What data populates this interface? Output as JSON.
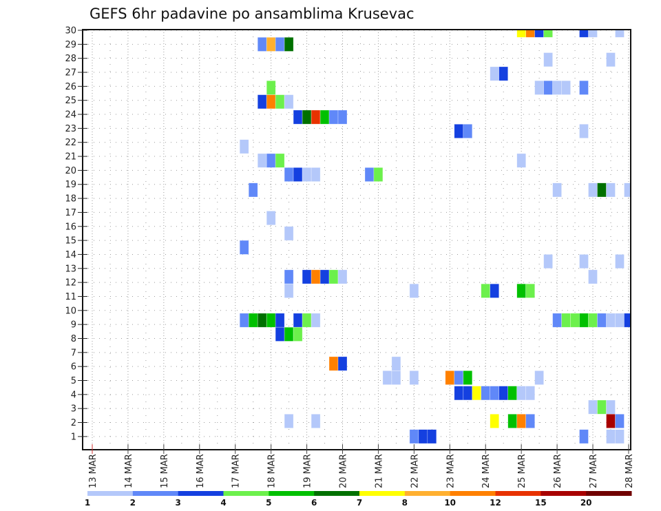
{
  "chart_data": {
    "type": "heatmap",
    "title": "GEFS 6hr padavine po ansamblima Krusevac",
    "xlabel": "",
    "ylabel": "",
    "x_step_hours": 6,
    "x_ticks": [
      "13 MAR",
      "14 MAR",
      "15 MAR",
      "16 MAR",
      "17 MAR",
      "18 MAR",
      "19 MAR",
      "20 MAR",
      "21 MAR",
      "22 MAR",
      "23 MAR",
      "24 MAR",
      "25 MAR",
      "26 MAR",
      "27 MAR",
      "28 MAR"
    ],
    "x_range_steps": [
      0,
      60
    ],
    "y_ticks": [
      "1",
      "2",
      "3",
      "4",
      "5",
      "6",
      "7",
      "8",
      "9",
      "10",
      "11",
      "12",
      "13",
      "14",
      "15",
      "16",
      "17",
      "18",
      "19",
      "20",
      "21",
      "22",
      "23",
      "24",
      "25",
      "26",
      "27",
      "28",
      "29",
      "30"
    ],
    "y_range": [
      0,
      30
    ],
    "grid": true,
    "legend": {
      "placement": "bottom",
      "labels": [
        "1",
        "2",
        "3",
        "4",
        "5",
        "6",
        "7",
        "8",
        "10",
        "12",
        "15",
        "20"
      ],
      "colors": [
        "#b4c8fa",
        "#6088f8",
        "#1440e0",
        "#6cf04c",
        "#00c000",
        "#007000",
        "#ffff00",
        "#ffb030",
        "#ff8000",
        "#e83200",
        "#a80000",
        "#700000"
      ]
    },
    "cells_note": "each cell: step index k (6-hour steps from 13 MAR 00z), ensemble value v, color class c (0 = 1-2 ... 11 = >20)",
    "cells": [
      {
        "k": 48,
        "v": 30,
        "c": 6
      },
      {
        "k": 49,
        "v": 30,
        "c": 8
      },
      {
        "k": 50,
        "v": 30,
        "c": 2
      },
      {
        "k": 51,
        "v": 30,
        "c": 3
      },
      {
        "k": 55,
        "v": 30,
        "c": 2
      },
      {
        "k": 56,
        "v": 30,
        "c": 0
      },
      {
        "k": 59,
        "v": 30,
        "c": 0
      },
      {
        "k": 19,
        "v": 29,
        "c": 1
      },
      {
        "k": 20,
        "v": 29,
        "c": 7
      },
      {
        "k": 21,
        "v": 29,
        "c": 1
      },
      {
        "k": 22,
        "v": 29,
        "c": 5
      },
      {
        "k": 51,
        "v": 27.9,
        "c": 0
      },
      {
        "k": 58,
        "v": 27.9,
        "c": 0
      },
      {
        "k": 45,
        "v": 26.9,
        "c": 0
      },
      {
        "k": 46,
        "v": 26.9,
        "c": 2
      },
      {
        "k": 20,
        "v": 25.9,
        "c": 3
      },
      {
        "k": 50,
        "v": 25.9,
        "c": 0
      },
      {
        "k": 51,
        "v": 25.9,
        "c": 1
      },
      {
        "k": 52,
        "v": 25.9,
        "c": 0
      },
      {
        "k": 53,
        "v": 25.9,
        "c": 0
      },
      {
        "k": 55,
        "v": 25.9,
        "c": 1
      },
      {
        "k": 19,
        "v": 24.9,
        "c": 2
      },
      {
        "k": 20,
        "v": 24.9,
        "c": 8
      },
      {
        "k": 21,
        "v": 24.9,
        "c": 3
      },
      {
        "k": 22,
        "v": 24.9,
        "c": 0
      },
      {
        "k": 23,
        "v": 23.8,
        "c": 2
      },
      {
        "k": 24,
        "v": 23.8,
        "c": 5
      },
      {
        "k": 25,
        "v": 23.8,
        "c": 9
      },
      {
        "k": 26,
        "v": 23.8,
        "c": 4
      },
      {
        "k": 27,
        "v": 23.8,
        "c": 1
      },
      {
        "k": 28,
        "v": 23.8,
        "c": 1
      },
      {
        "k": 41,
        "v": 22.8,
        "c": 2
      },
      {
        "k": 42,
        "v": 22.8,
        "c": 1
      },
      {
        "k": 55,
        "v": 22.8,
        "c": 0
      },
      {
        "k": 17,
        "v": 21.7,
        "c": 0
      },
      {
        "k": 19,
        "v": 20.7,
        "c": 0
      },
      {
        "k": 20,
        "v": 20.7,
        "c": 1
      },
      {
        "k": 21,
        "v": 20.7,
        "c": 3
      },
      {
        "k": 48,
        "v": 20.7,
        "c": 0
      },
      {
        "k": 22,
        "v": 19.7,
        "c": 1
      },
      {
        "k": 23,
        "v": 19.7,
        "c": 2
      },
      {
        "k": 24,
        "v": 19.7,
        "c": 0
      },
      {
        "k": 25,
        "v": 19.7,
        "c": 0
      },
      {
        "k": 31,
        "v": 19.7,
        "c": 1
      },
      {
        "k": 32,
        "v": 19.7,
        "c": 3
      },
      {
        "k": 18,
        "v": 18.6,
        "c": 1
      },
      {
        "k": 52,
        "v": 18.6,
        "c": 0
      },
      {
        "k": 56,
        "v": 18.6,
        "c": 0
      },
      {
        "k": 57,
        "v": 18.6,
        "c": 5
      },
      {
        "k": 58,
        "v": 18.6,
        "c": 0
      },
      {
        "k": 60,
        "v": 18.6,
        "c": 0
      },
      {
        "k": 20,
        "v": 16.6,
        "c": 0
      },
      {
        "k": 22,
        "v": 15.5,
        "c": 0
      },
      {
        "k": 17,
        "v": 14.5,
        "c": 1
      },
      {
        "k": 51,
        "v": 13.5,
        "c": 0
      },
      {
        "k": 55,
        "v": 13.5,
        "c": 0
      },
      {
        "k": 59,
        "v": 13.5,
        "c": 0
      },
      {
        "k": 22,
        "v": 12.4,
        "c": 1
      },
      {
        "k": 24,
        "v": 12.4,
        "c": 2
      },
      {
        "k": 25,
        "v": 12.4,
        "c": 8
      },
      {
        "k": 26,
        "v": 12.4,
        "c": 2
      },
      {
        "k": 27,
        "v": 12.4,
        "c": 3
      },
      {
        "k": 28,
        "v": 12.4,
        "c": 0
      },
      {
        "k": 56,
        "v": 12.4,
        "c": 0
      },
      {
        "k": 22,
        "v": 11.4,
        "c": 0
      },
      {
        "k": 36,
        "v": 11.4,
        "c": 0
      },
      {
        "k": 44,
        "v": 11.4,
        "c": 3
      },
      {
        "k": 45,
        "v": 11.4,
        "c": 2
      },
      {
        "k": 48,
        "v": 11.4,
        "c": 4
      },
      {
        "k": 49,
        "v": 11.4,
        "c": 3
      },
      {
        "k": 17,
        "v": 9.3,
        "c": 1
      },
      {
        "k": 18,
        "v": 9.3,
        "c": 4
      },
      {
        "k": 19,
        "v": 9.3,
        "c": 5
      },
      {
        "k": 20,
        "v": 9.3,
        "c": 4
      },
      {
        "k": 21,
        "v": 9.3,
        "c": 2
      },
      {
        "k": 23,
        "v": 9.3,
        "c": 2
      },
      {
        "k": 24,
        "v": 9.3,
        "c": 3
      },
      {
        "k": 25,
        "v": 9.3,
        "c": 0
      },
      {
        "k": 52,
        "v": 9.3,
        "c": 1
      },
      {
        "k": 53,
        "v": 9.3,
        "c": 3
      },
      {
        "k": 54,
        "v": 9.3,
        "c": 3
      },
      {
        "k": 55,
        "v": 9.3,
        "c": 4
      },
      {
        "k": 56,
        "v": 9.3,
        "c": 3
      },
      {
        "k": 57,
        "v": 9.3,
        "c": 1
      },
      {
        "k": 58,
        "v": 9.3,
        "c": 0
      },
      {
        "k": 59,
        "v": 9.3,
        "c": 0
      },
      {
        "k": 60,
        "v": 9.3,
        "c": 2
      },
      {
        "k": 21,
        "v": 8.3,
        "c": 2
      },
      {
        "k": 22,
        "v": 8.3,
        "c": 4
      },
      {
        "k": 23,
        "v": 8.3,
        "c": 3
      },
      {
        "k": 27,
        "v": 6.2,
        "c": 8
      },
      {
        "k": 28,
        "v": 6.2,
        "c": 2
      },
      {
        "k": 34,
        "v": 6.2,
        "c": 0
      },
      {
        "k": 33,
        "v": 5.2,
        "c": 0
      },
      {
        "k": 34,
        "v": 5.2,
        "c": 0
      },
      {
        "k": 36,
        "v": 5.2,
        "c": 0
      },
      {
        "k": 40,
        "v": 5.2,
        "c": 8
      },
      {
        "k": 41,
        "v": 5.2,
        "c": 1
      },
      {
        "k": 42,
        "v": 5.2,
        "c": 4
      },
      {
        "k": 50,
        "v": 5.2,
        "c": 0
      },
      {
        "k": 41,
        "v": 4.1,
        "c": 2
      },
      {
        "k": 42,
        "v": 4.1,
        "c": 2
      },
      {
        "k": 43,
        "v": 4.1,
        "c": 6
      },
      {
        "k": 44,
        "v": 4.1,
        "c": 1
      },
      {
        "k": 45,
        "v": 4.1,
        "c": 1
      },
      {
        "k": 46,
        "v": 4.1,
        "c": 2
      },
      {
        "k": 47,
        "v": 4.1,
        "c": 4
      },
      {
        "k": 48,
        "v": 4.1,
        "c": 0
      },
      {
        "k": 49,
        "v": 4.1,
        "c": 0
      },
      {
        "k": 56,
        "v": 3.1,
        "c": 0
      },
      {
        "k": 57,
        "v": 3.1,
        "c": 3
      },
      {
        "k": 58,
        "v": 3.1,
        "c": 0
      },
      {
        "k": 22,
        "v": 2.1,
        "c": 0
      },
      {
        "k": 25,
        "v": 2.1,
        "c": 0
      },
      {
        "k": 45,
        "v": 2.1,
        "c": 6
      },
      {
        "k": 47,
        "v": 2.1,
        "c": 4
      },
      {
        "k": 48,
        "v": 2.1,
        "c": 8
      },
      {
        "k": 49,
        "v": 2.1,
        "c": 1
      },
      {
        "k": 58,
        "v": 2.1,
        "c": 10
      },
      {
        "k": 59,
        "v": 2.1,
        "c": 1
      },
      {
        "k": 36,
        "v": 1.0,
        "c": 1
      },
      {
        "k": 37,
        "v": 1.0,
        "c": 2
      },
      {
        "k": 38,
        "v": 1.0,
        "c": 2
      },
      {
        "k": 55,
        "v": 1.0,
        "c": 1
      },
      {
        "k": 58,
        "v": 1.0,
        "c": 0
      },
      {
        "k": 59,
        "v": 1.0,
        "c": 0
      }
    ]
  }
}
